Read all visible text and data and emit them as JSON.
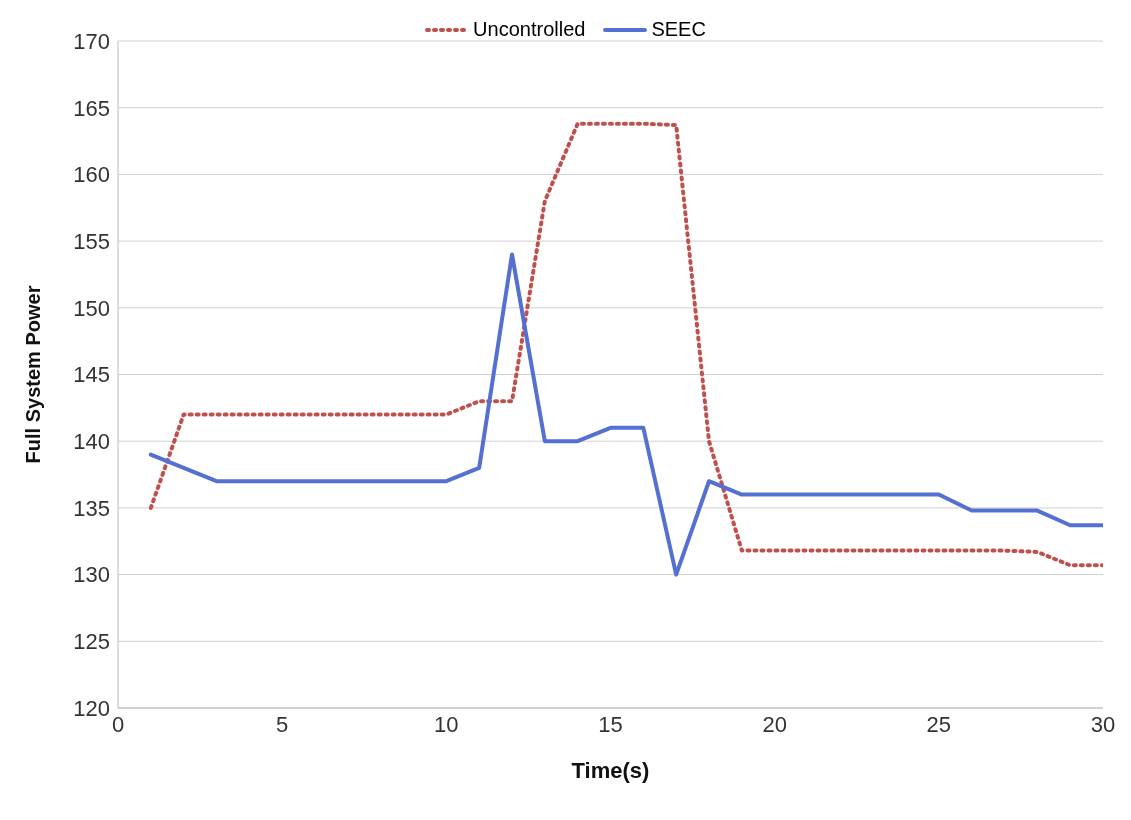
{
  "chart_data": {
    "type": "line",
    "xlabel": "Time(s)",
    "ylabel": "Full System Power",
    "x": [
      1,
      2,
      3,
      4,
      5,
      6,
      7,
      8,
      9,
      10,
      11,
      12,
      13,
      14,
      15,
      16,
      17,
      18,
      19,
      20,
      21,
      22,
      23,
      24,
      25,
      26,
      27,
      28,
      29,
      30
    ],
    "series": [
      {
        "name": "Uncontrolled",
        "color": "#c0504d",
        "line_style": "dotted",
        "values": [
          135,
          142,
          142,
          142,
          142,
          142,
          142,
          142,
          142,
          142,
          143,
          143,
          158,
          163.8,
          163.8,
          163.8,
          163.7,
          140,
          131.8,
          131.8,
          131.8,
          131.8,
          131.8,
          131.8,
          131.8,
          131.8,
          131.8,
          131.7,
          130.7,
          130.7
        ]
      },
      {
        "name": "SEEC",
        "color": "#5470d0",
        "line_style": "solid",
        "values": [
          139,
          138,
          137,
          137,
          137,
          137,
          137,
          137,
          137,
          137,
          138,
          154,
          140,
          140,
          141,
          141,
          130,
          137,
          136,
          136,
          136,
          136,
          136,
          136,
          136,
          134.8,
          134.8,
          134.8,
          133.7,
          133.7
        ]
      }
    ],
    "xlim": [
      0,
      30
    ],
    "xticks": [
      0,
      5,
      10,
      15,
      20,
      25,
      30
    ],
    "ylim": [
      120,
      170
    ],
    "yticks": [
      120,
      125,
      130,
      135,
      140,
      145,
      150,
      155,
      160,
      165,
      170
    ],
    "grid": "y",
    "legend": "top",
    "marker": "none"
  }
}
